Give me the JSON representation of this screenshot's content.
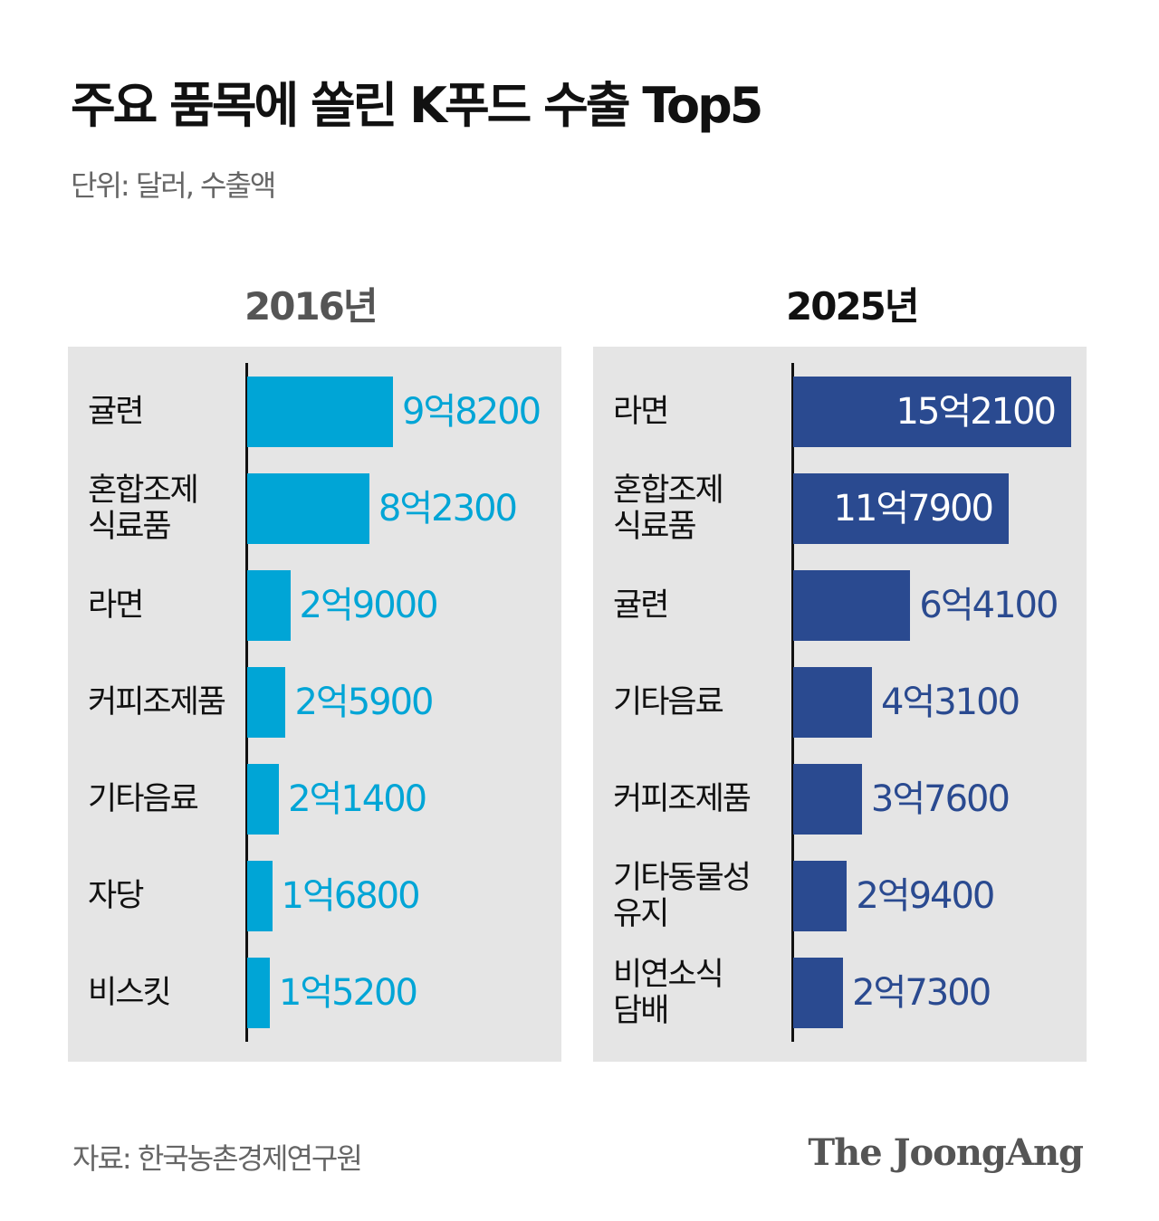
{
  "title": "주요 품목에 쏠린 K푸드 수출 Top5",
  "subtitle": "단위: 달러, 수출액",
  "source": "자료: 한국농촌경제연구원",
  "logo": "The JoongAng",
  "chart_data": [
    {
      "type": "bar",
      "orientation": "horizontal",
      "title": "2016년",
      "color": "#00a5d6",
      "categories": [
        "귤련",
        "혼합조제\n식료품",
        "라면",
        "커피조제품",
        "기타음료",
        "자당",
        "비스킷"
      ],
      "values": [
        982000000,
        823000000,
        290000000,
        259000000,
        214000000,
        168000000,
        152000000
      ],
      "labels": [
        "9억8200",
        "8억2300",
        "2억9000",
        "2억5900",
        "2억1400",
        "1억6800",
        "1억5200"
      ]
    },
    {
      "type": "bar",
      "orientation": "horizontal",
      "title": "2025년",
      "color": "#2a4a90",
      "categories": [
        "라면",
        "혼합조제\n식료품",
        "귤련",
        "기타음료",
        "커피조제품",
        "기타동물성\n유지",
        "비연소식\n담배"
      ],
      "values": [
        1521000000,
        1179000000,
        641000000,
        431000000,
        376000000,
        294000000,
        273000000
      ],
      "labels": [
        "15억2100",
        "11억7900",
        "6억4100",
        "4억3100",
        "3억7600",
        "2억9400",
        "2억7300"
      ]
    }
  ]
}
